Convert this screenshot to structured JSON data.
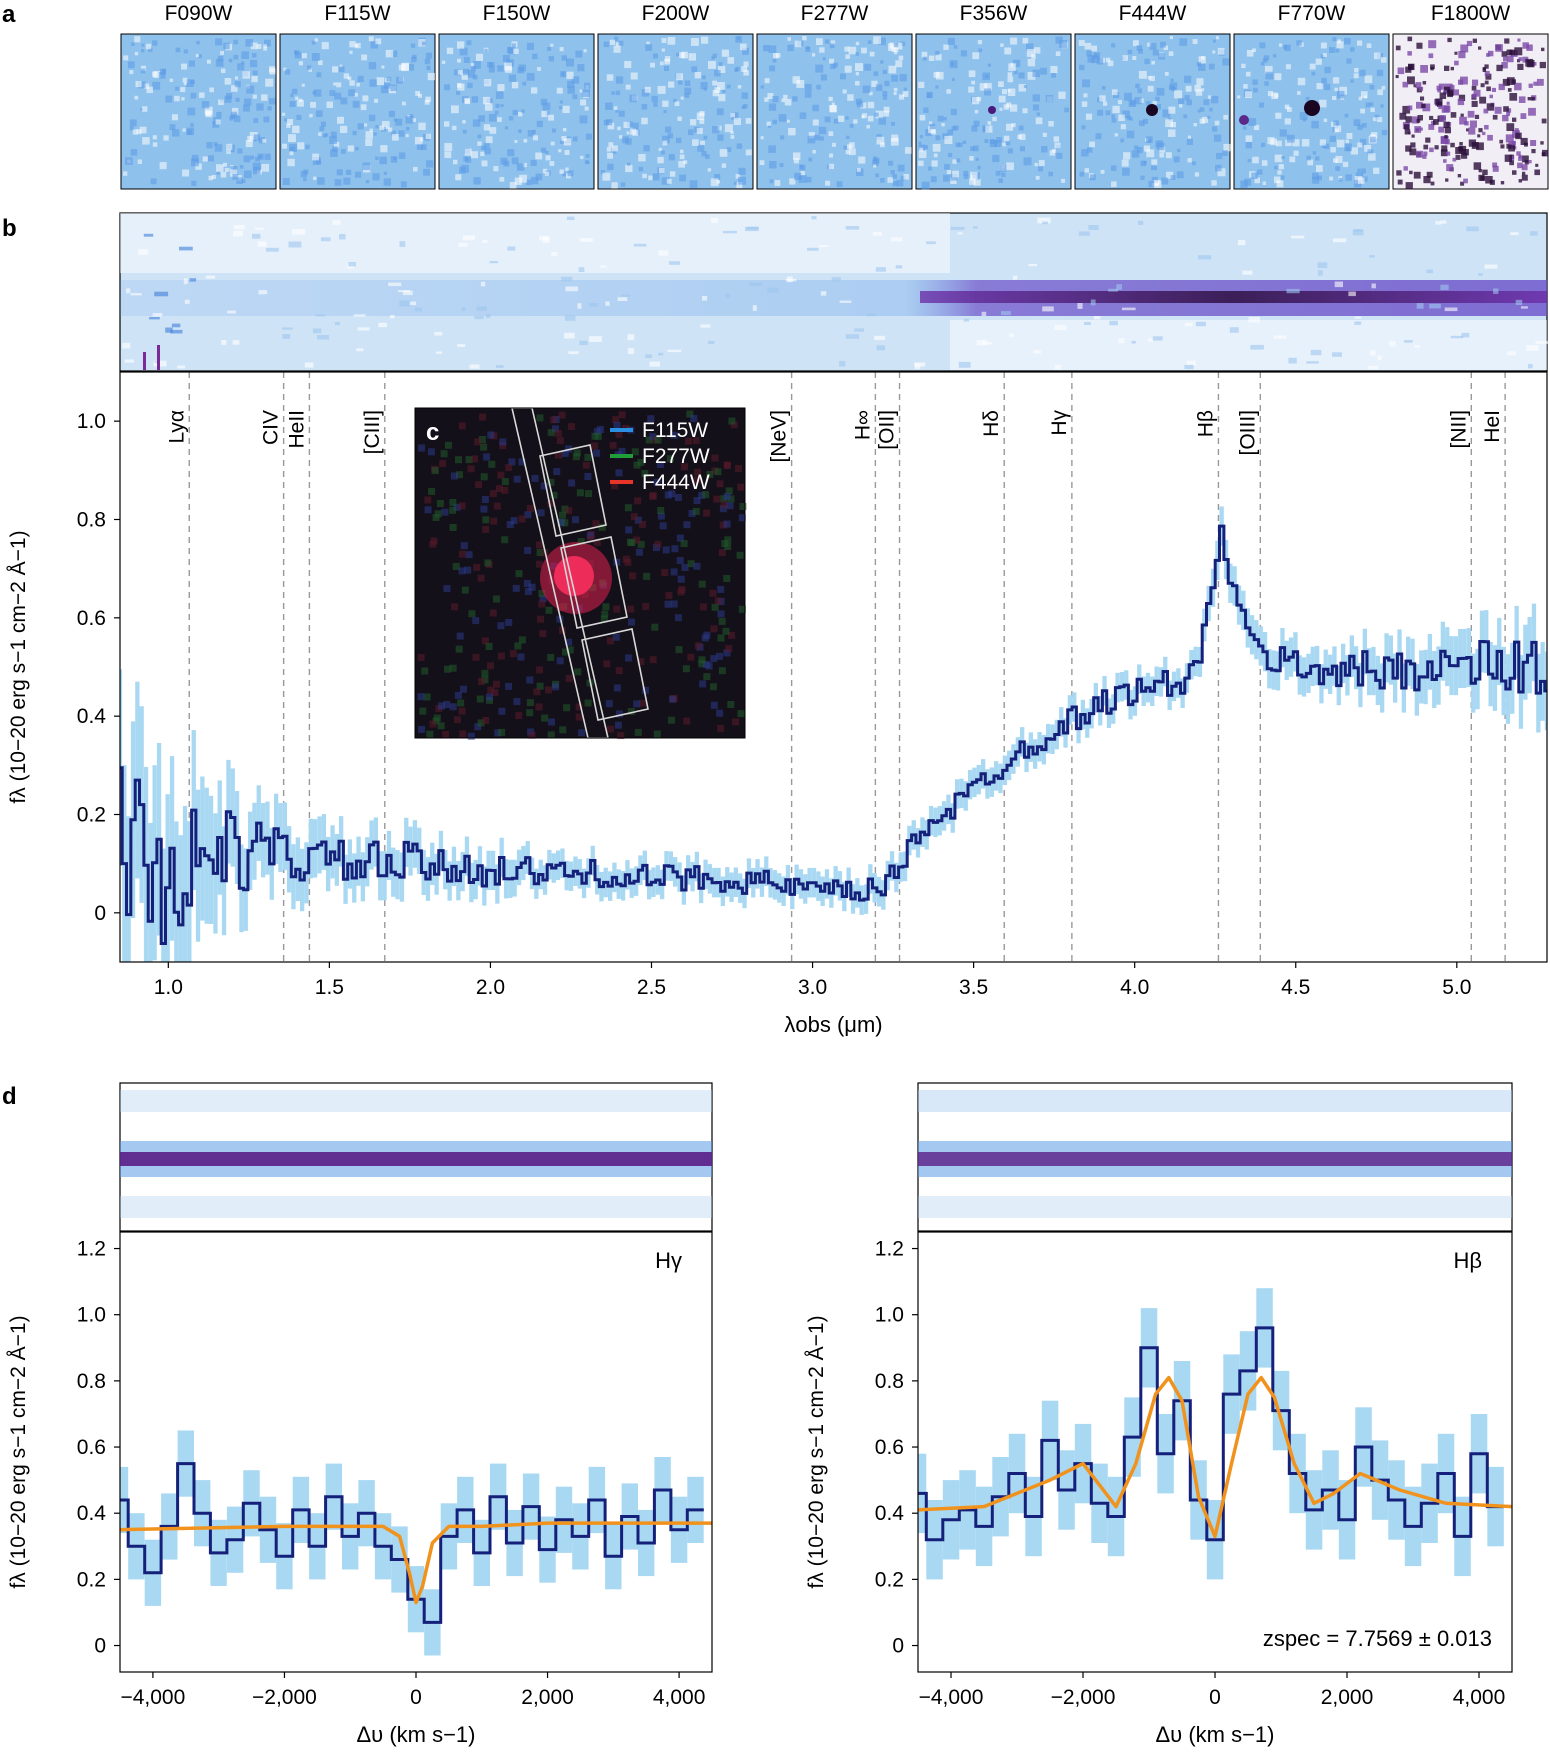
{
  "panel_letters": {
    "a": "a",
    "b": "b",
    "c": "c",
    "d": "d"
  },
  "filters": [
    "F090W",
    "F115W",
    "F150W",
    "F200W",
    "F277W",
    "F356W",
    "F444W",
    "F770W",
    "F1800W"
  ],
  "inset_legend": [
    {
      "label": "F115W",
      "color": "#2a8fe0"
    },
    {
      "label": "F277W",
      "color": "#1f9e3a"
    },
    {
      "label": "F444W",
      "color": "#e8352a"
    }
  ],
  "colors": {
    "line": "#14207a",
    "error": "#a9d8f2",
    "model": "#f0921c",
    "guide": "#999999",
    "spec2d_low": "#ffffff",
    "spec2d_mid": "#5b9be6",
    "spec2d_high": "#2a0a3a"
  },
  "chart_data": [
    {
      "id": "b",
      "type": "line",
      "style": "step",
      "xlabel": "λobs (μm)",
      "ylabel": "fλ (10−20 erg s−1 cm−2 Å−1)",
      "xlim": [
        0.85,
        5.28
      ],
      "ylim": [
        -0.1,
        1.1
      ],
      "xticks": [
        1.0,
        1.5,
        2.0,
        2.5,
        3.0,
        3.5,
        4.0,
        4.5,
        5.0
      ],
      "xtick_labels": [
        "1.0",
        "1.5",
        "2.0",
        "2.5",
        "3.0",
        "3.5",
        "4.0",
        "4.5",
        "5.0"
      ],
      "yticks": [
        0,
        0.2,
        0.4,
        0.6,
        0.8,
        1.0
      ],
      "ytick_labels": [
        "0",
        "0.2",
        "0.4",
        "0.6",
        "0.8",
        "1.0"
      ],
      "grid": false,
      "lines": [
        {
          "label": "Lyα",
          "x": 1.065
        },
        {
          "label": "CIV",
          "x": 1.358
        },
        {
          "label": "HeII",
          "x": 1.438
        },
        {
          "label": "[CIII]",
          "x": 1.672
        },
        {
          "label": "[NeV]",
          "x": 2.935
        },
        {
          "label": "H∞",
          "x": 3.195
        },
        {
          "label": "[OII]",
          "x": 3.27
        },
        {
          "label": "Hδ",
          "x": 3.595
        },
        {
          "label": "Hγ",
          "x": 3.805
        },
        {
          "label": "Hβ",
          "x": 4.26
        },
        {
          "label": "[OIII]",
          "x": 4.39
        },
        {
          "label": "[NII]",
          "x": 5.045
        },
        {
          "label": "HeI",
          "x": 5.15
        }
      ],
      "x": [
        0.85,
        0.95,
        1.05,
        1.15,
        1.25,
        1.35,
        1.45,
        1.55,
        1.65,
        1.75,
        1.85,
        1.95,
        2.05,
        2.15,
        2.25,
        2.35,
        2.45,
        2.55,
        2.65,
        2.75,
        2.85,
        2.95,
        3.05,
        3.15,
        3.2,
        3.25,
        3.3,
        3.35,
        3.45,
        3.55,
        3.65,
        3.75,
        3.85,
        3.95,
        4.05,
        4.15,
        4.2,
        4.25,
        4.275,
        4.3,
        4.35,
        4.45,
        4.55,
        4.65,
        4.75,
        4.85,
        4.95,
        5.05,
        5.15,
        5.25
      ],
      "y": [
        0.2,
        0.05,
        0.1,
        0.12,
        0.12,
        0.12,
        0.11,
        0.1,
        0.1,
        0.1,
        0.09,
        0.09,
        0.09,
        0.08,
        0.08,
        0.08,
        0.07,
        0.07,
        0.07,
        0.07,
        0.06,
        0.05,
        0.04,
        0.04,
        0.05,
        0.07,
        0.13,
        0.18,
        0.22,
        0.28,
        0.33,
        0.37,
        0.41,
        0.44,
        0.46,
        0.47,
        0.5,
        0.7,
        0.78,
        0.68,
        0.55,
        0.51,
        0.5,
        0.49,
        0.49,
        0.5,
        0.5,
        0.5,
        0.5,
        0.5
      ],
      "yerr": [
        0.2,
        0.2,
        0.18,
        0.12,
        0.08,
        0.07,
        0.06,
        0.05,
        0.05,
        0.05,
        0.04,
        0.04,
        0.04,
        0.03,
        0.03,
        0.03,
        0.03,
        0.03,
        0.03,
        0.03,
        0.03,
        0.03,
        0.03,
        0.03,
        0.03,
        0.03,
        0.03,
        0.03,
        0.03,
        0.03,
        0.03,
        0.03,
        0.03,
        0.03,
        0.03,
        0.03,
        0.03,
        0.04,
        0.04,
        0.04,
        0.04,
        0.04,
        0.04,
        0.04,
        0.05,
        0.05,
        0.06,
        0.06,
        0.07,
        0.08
      ]
    },
    {
      "id": "d-left",
      "type": "line",
      "style": "step",
      "annotation": "Hγ",
      "xlabel": "Δυ (km s−1)",
      "ylabel": "fλ (10−20 erg s−1 cm−2 Å−1)",
      "xlim": [
        -4500,
        4500
      ],
      "ylim": [
        -0.08,
        1.25
      ],
      "xticks": [
        -4000,
        -2000,
        0,
        2000,
        4000
      ],
      "xtick_labels": [
        "−4,000",
        "−2,000",
        "0",
        "2,000",
        "4,000"
      ],
      "yticks": [
        0,
        0.2,
        0.4,
        0.6,
        0.8,
        1.0,
        1.2
      ],
      "ytick_labels": [
        "0",
        "0.2",
        "0.4",
        "0.6",
        "0.8",
        "1.0",
        "1.2"
      ],
      "grid": false,
      "x": [
        -4500,
        -4250,
        -4000,
        -3750,
        -3500,
        -3250,
        -3000,
        -2750,
        -2500,
        -2250,
        -2000,
        -1750,
        -1500,
        -1250,
        -1000,
        -750,
        -500,
        -250,
        0,
        250,
        500,
        750,
        1000,
        1250,
        1500,
        1750,
        2000,
        2250,
        2500,
        2750,
        3000,
        3250,
        3500,
        3750,
        4000,
        4250
      ],
      "y": [
        0.44,
        0.3,
        0.22,
        0.36,
        0.55,
        0.4,
        0.28,
        0.32,
        0.43,
        0.35,
        0.27,
        0.41,
        0.3,
        0.45,
        0.33,
        0.4,
        0.3,
        0.26,
        0.14,
        0.07,
        0.33,
        0.41,
        0.28,
        0.45,
        0.31,
        0.42,
        0.29,
        0.38,
        0.33,
        0.44,
        0.27,
        0.39,
        0.31,
        0.47,
        0.35,
        0.41
      ],
      "yerr": [
        0.1,
        0.1,
        0.1,
        0.1,
        0.1,
        0.1,
        0.1,
        0.1,
        0.1,
        0.1,
        0.1,
        0.1,
        0.1,
        0.1,
        0.1,
        0.1,
        0.1,
        0.1,
        0.1,
        0.1,
        0.1,
        0.1,
        0.1,
        0.1,
        0.1,
        0.1,
        0.1,
        0.1,
        0.1,
        0.1,
        0.1,
        0.1,
        0.1,
        0.1,
        0.1,
        0.1
      ],
      "model": {
        "x": [
          -4500,
          -2000,
          -500,
          -250,
          -100,
          0,
          100,
          250,
          500,
          1000,
          2000,
          4500
        ],
        "y": [
          0.35,
          0.36,
          0.36,
          0.33,
          0.22,
          0.13,
          0.18,
          0.31,
          0.36,
          0.36,
          0.37,
          0.37
        ]
      }
    },
    {
      "id": "d-right",
      "type": "line",
      "style": "step",
      "annotation": "Hβ",
      "note": "zspec = 7.7569 ± 0.013",
      "xlabel": "Δυ (km s−1)",
      "ylabel": "fλ (10−20 erg s−1 cm−2 Å−1)",
      "xlim": [
        -4500,
        4500
      ],
      "ylim": [
        -0.08,
        1.25
      ],
      "xticks": [
        -4000,
        -2000,
        0,
        2000,
        4000
      ],
      "xtick_labels": [
        "−4,000",
        "−2,000",
        "0",
        "2,000",
        "4,000"
      ],
      "yticks": [
        0,
        0.2,
        0.4,
        0.6,
        0.8,
        1.0,
        1.2
      ],
      "ytick_labels": [
        "0",
        "0.2",
        "0.4",
        "0.6",
        "0.8",
        "1.0",
        "1.2"
      ],
      "grid": false,
      "x": [
        -4500,
        -4250,
        -4000,
        -3750,
        -3500,
        -3250,
        -3000,
        -2750,
        -2500,
        -2250,
        -2000,
        -1750,
        -1500,
        -1250,
        -1000,
        -750,
        -500,
        -250,
        0,
        250,
        500,
        750,
        1000,
        1250,
        1500,
        1750,
        2000,
        2250,
        2500,
        2750,
        3000,
        3250,
        3500,
        3750,
        4000,
        4250
      ],
      "y": [
        0.46,
        0.32,
        0.38,
        0.41,
        0.36,
        0.45,
        0.52,
        0.39,
        0.62,
        0.47,
        0.55,
        0.43,
        0.39,
        0.63,
        0.9,
        0.58,
        0.74,
        0.44,
        0.32,
        0.76,
        0.83,
        0.96,
        0.71,
        0.52,
        0.41,
        0.47,
        0.38,
        0.6,
        0.5,
        0.44,
        0.36,
        0.43,
        0.52,
        0.33,
        0.58,
        0.42
      ],
      "yerr": [
        0.12,
        0.12,
        0.12,
        0.12,
        0.12,
        0.12,
        0.12,
        0.12,
        0.12,
        0.12,
        0.12,
        0.12,
        0.12,
        0.12,
        0.12,
        0.12,
        0.12,
        0.12,
        0.12,
        0.12,
        0.12,
        0.12,
        0.12,
        0.12,
        0.12,
        0.12,
        0.12,
        0.12,
        0.12,
        0.12,
        0.12,
        0.12,
        0.12,
        0.12,
        0.12,
        0.12
      ],
      "model": {
        "x": [
          -4500,
          -3500,
          -2500,
          -2000,
          -1500,
          -1200,
          -900,
          -700,
          -500,
          -250,
          0,
          250,
          500,
          700,
          900,
          1200,
          1500,
          1800,
          2200,
          2800,
          3500,
          4500
        ],
        "y": [
          0.41,
          0.42,
          0.5,
          0.55,
          0.42,
          0.55,
          0.76,
          0.81,
          0.74,
          0.45,
          0.33,
          0.55,
          0.76,
          0.81,
          0.75,
          0.55,
          0.43,
          0.46,
          0.52,
          0.47,
          0.43,
          0.42
        ]
      }
    }
  ]
}
